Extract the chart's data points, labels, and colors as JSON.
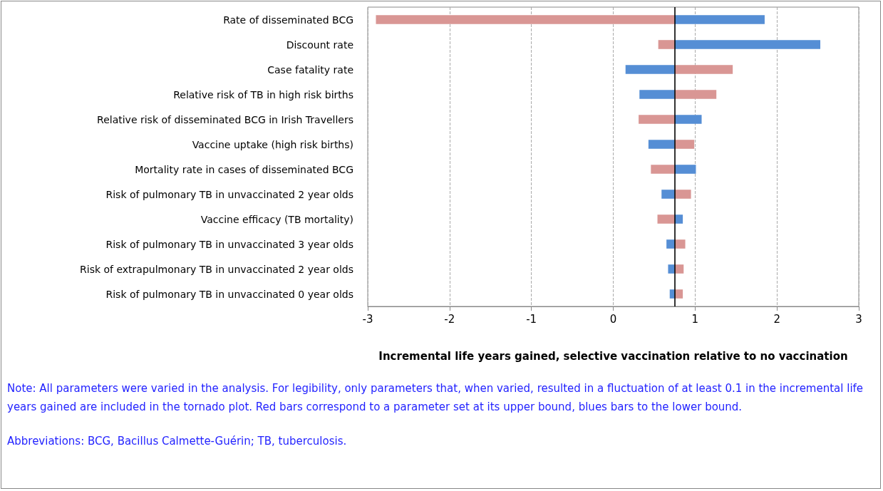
{
  "chart_data": {
    "type": "bar",
    "orientation": "horizontal",
    "xlabel": "Incremental life years gained, selective vaccination relative to no vaccination",
    "categories": [
      "Rate of disseminated BCG",
      "Discount rate",
      "Case fatality rate",
      "Relative risk of TB in high risk births",
      "Relative risk of disseminated BCG in Irish Travellers",
      "Vaccine uptake (high risk births)",
      "Mortality rate in cases of disseminated BCG",
      "Risk of pulmonary TB in unvaccinated 2 year olds",
      "Vaccine efficacy (TB mortality)",
      "Risk of pulmonary TB in unvaccinated 3 year olds",
      "Risk of extrapulmonary TB in unvaccinated 2 year olds",
      "Risk of pulmonary TB in unvaccinated 0 year olds"
    ],
    "series": [
      {
        "color": "#d99694",
        "base": [
          0.75,
          0.75,
          0.75,
          0.75,
          0.75,
          0.75,
          0.75,
          0.75,
          0.75,
          0.75,
          0.75,
          0.75
        ],
        "values": [
          -3.65,
          -0.2,
          0.71,
          0.51,
          -0.44,
          0.24,
          -0.29,
          0.2,
          -0.21,
          0.13,
          0.11,
          0.1
        ]
      },
      {
        "color": "#558ed5",
        "base": [
          0.75,
          0.75,
          0.75,
          0.75,
          0.75,
          0.75,
          0.75,
          0.75,
          0.75,
          0.75,
          0.75,
          0.75
        ],
        "values": [
          1.1,
          1.78,
          -0.6,
          -0.43,
          0.33,
          -0.32,
          0.26,
          -0.16,
          0.1,
          -0.1,
          -0.08,
          -0.06
        ]
      }
    ],
    "xlim": [
      -3,
      3
    ],
    "xticks": [
      -3,
      -2,
      -1,
      0,
      1,
      2,
      3
    ],
    "grid": "x",
    "ref_lines": [
      {
        "axis": "x",
        "value": 0.75,
        "color": "#000000"
      }
    ],
    "annotations": [
      "Note: All parameters were varied in the analysis. For legibility, only parameters that, when varied, resulted in a fluctuation of at least 0.1 in the incremental life years gained are included in the tornado plot. Red bars correspond to a parameter set at its upper bound, blues bars to the lower bound.",
      "Abbreviations: BCG, Bacillus Calmette-Guérin; TB, tuberculosis."
    ]
  }
}
